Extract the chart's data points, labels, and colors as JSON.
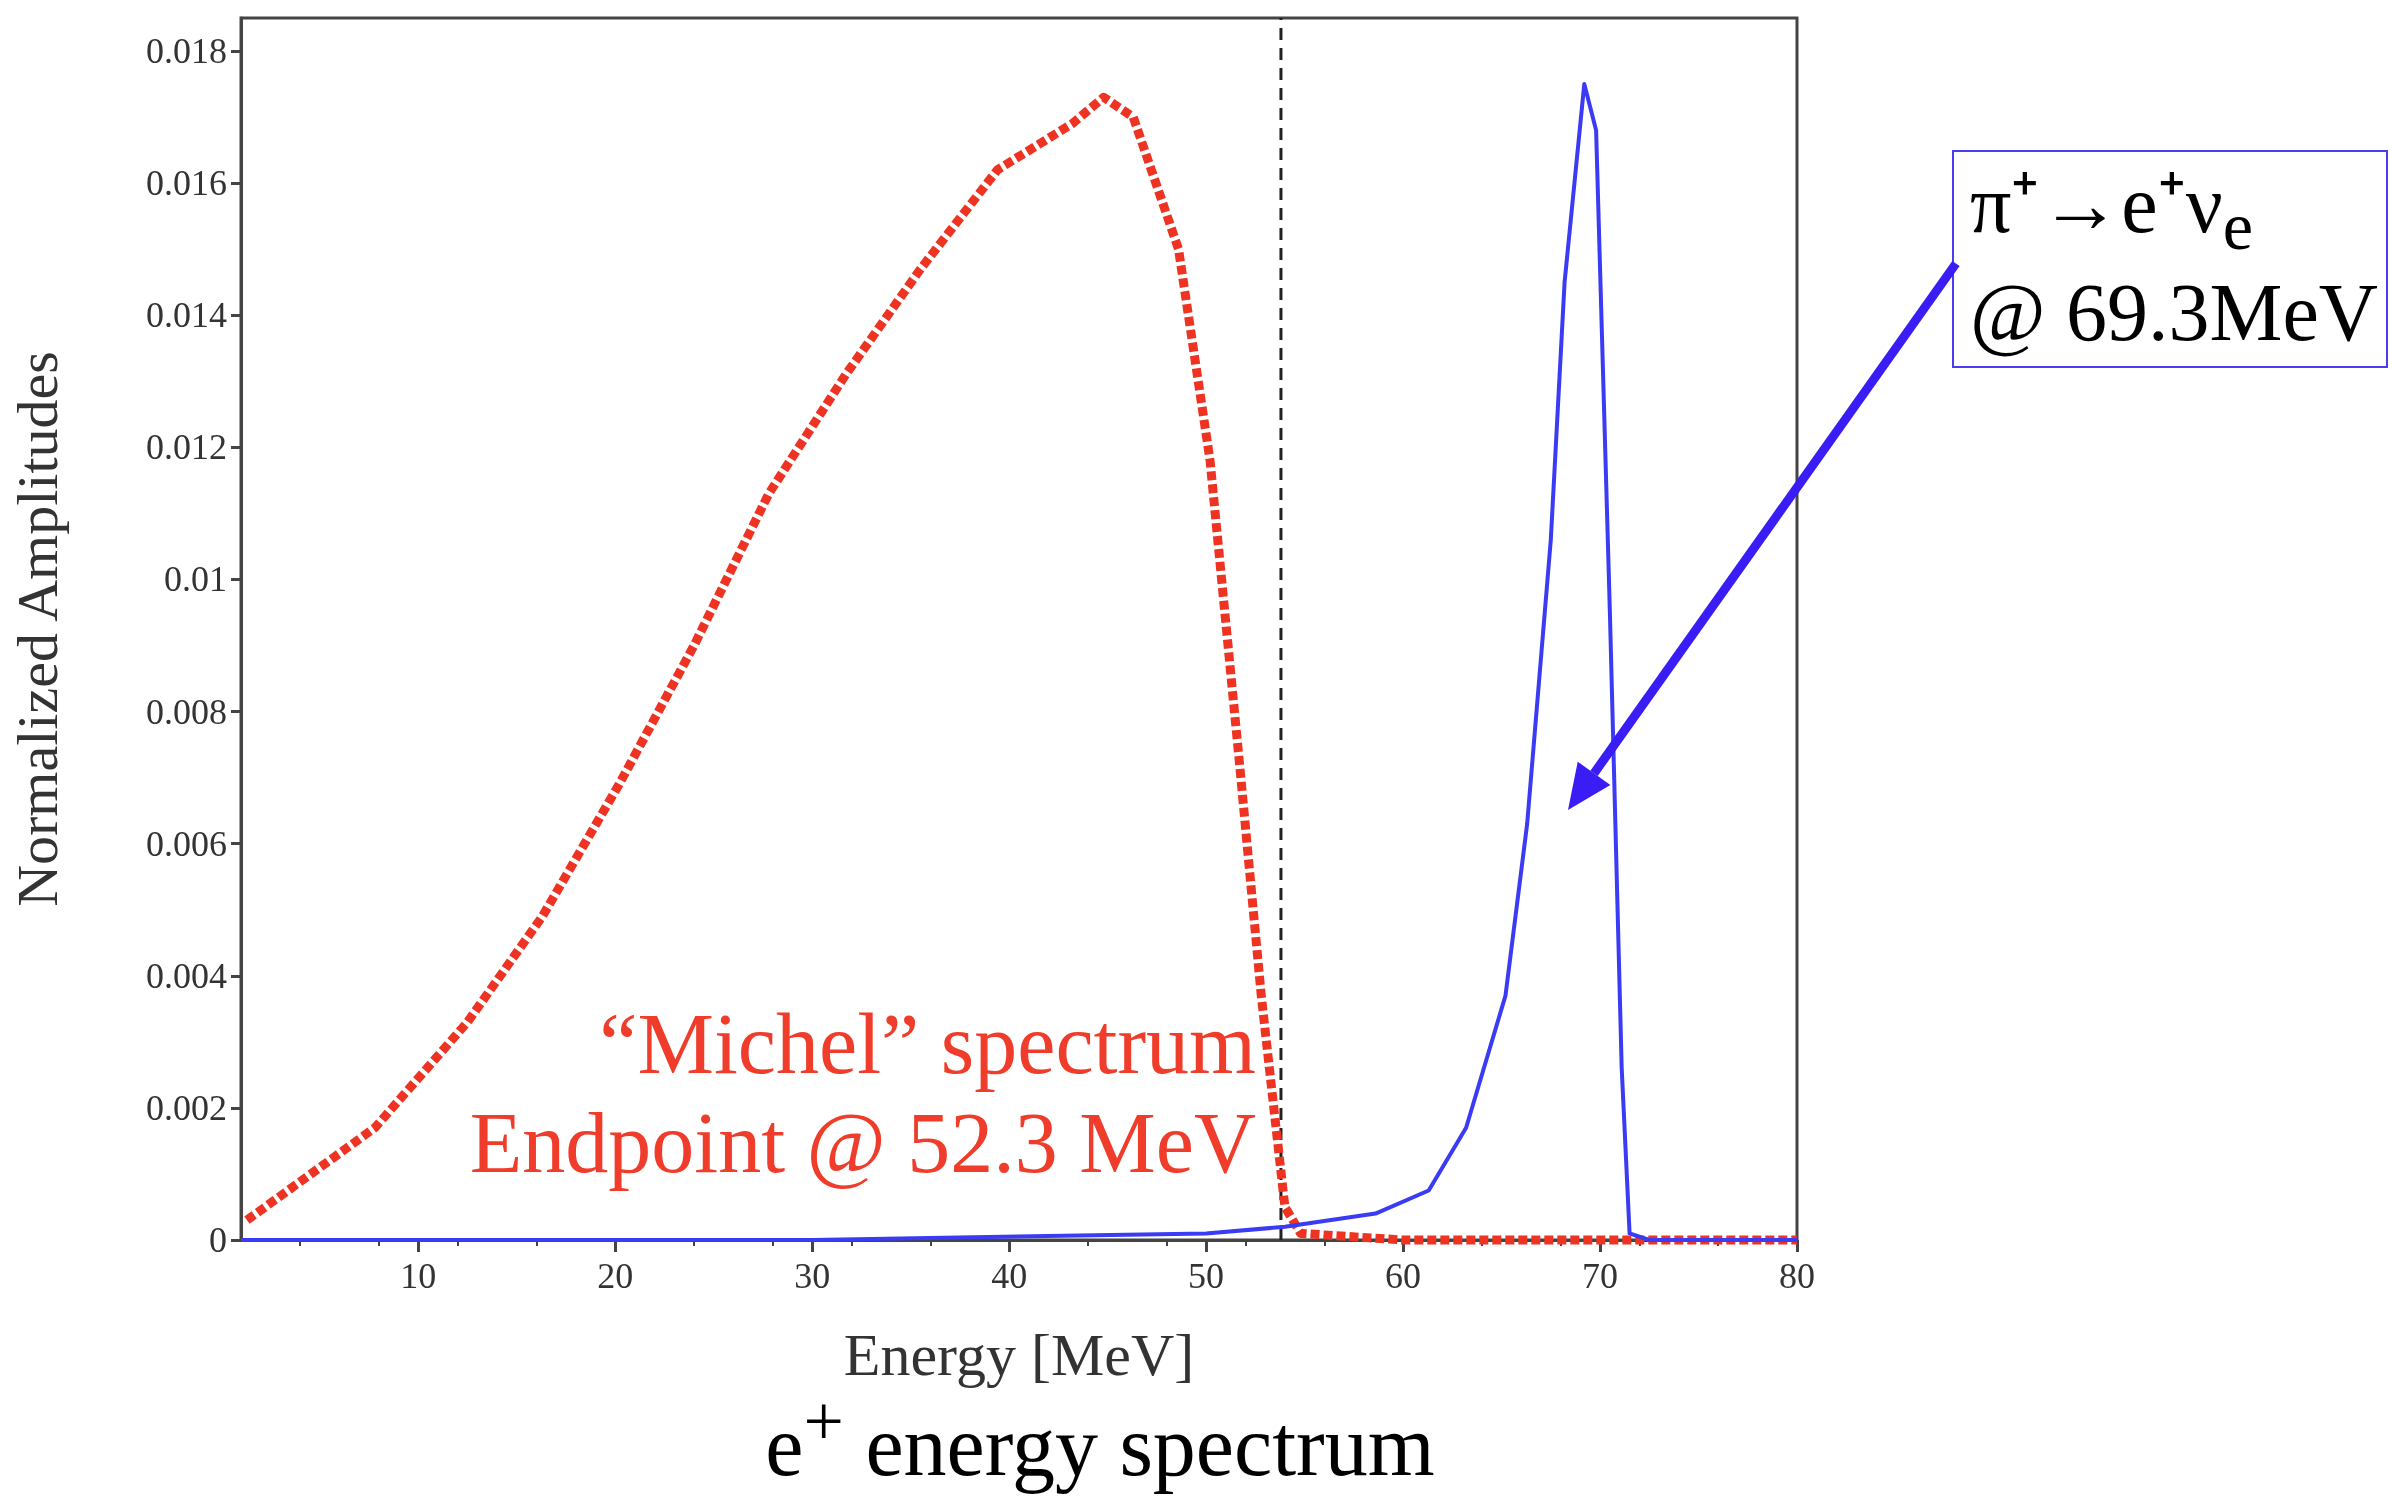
{
  "chart_data": {
    "type": "line",
    "title": "e$^{+}$ energy spectrum",
    "xlabel": "Energy [MeV]",
    "ylabel": "Normalized Amplitudes",
    "xlim": [
      1,
      80
    ],
    "xticks": [
      10,
      20,
      30,
      40,
      50,
      60,
      70,
      80
    ],
    "ylim": [
      0,
      0.0185
    ],
    "yticks": [
      0,
      0.002,
      0.004,
      0.006,
      0.008,
      0.01,
      0.012,
      0.014,
      0.016,
      0.018
    ],
    "grid": false,
    "marker": "none",
    "series": [
      {
        "color": "#ee3322",
        "line_style": "dotted",
        "x": [
          1.3,
          7.8,
          12.5,
          16.3,
          20.2,
          24,
          27.8,
          31.7,
          35.5,
          39.4,
          43.2,
          44.8,
          46.3,
          48.6,
          50.2,
          51.7,
          52.8,
          54,
          54.8,
          60,
          70,
          80
        ],
        "values": [
          0.0003,
          0.0017,
          0.0033,
          0.0049,
          0.0069,
          0.009,
          0.0113,
          0.0131,
          0.0147,
          0.0162,
          0.0169,
          0.0173,
          0.017,
          0.015,
          0.0118,
          0.0072,
          0.0037,
          0.0005,
          0.0001,
          0,
          0,
          0
        ]
      },
      {
        "color": "#3b3bf5",
        "line_style": "solid",
        "x": [
          1,
          30,
          50,
          54,
          58.6,
          61.3,
          63.2,
          65.2,
          66.3,
          67.5,
          68.2,
          69.2,
          69.8,
          70.5,
          71.1,
          71.5,
          72.5,
          80
        ],
        "values": [
          0,
          0,
          0.0001,
          0.0002,
          0.0004,
          0.00075,
          0.0017,
          0.0037,
          0.0063,
          0.0106,
          0.0145,
          0.0175,
          0.0168,
          0.0095,
          0.0026,
          0.0001,
          0,
          0
        ]
      }
    ],
    "ref_lines": [
      {
        "axis": "x",
        "value": 53.8,
        "color": "#222222",
        "line_style": "dashed"
      }
    ],
    "annotations": [
      "“Michel” spectrum\nEndpoint @ 52.3 MeV",
      "π⁺→e⁺ν$_{e}$\n@ 69.3MeV"
    ]
  }
}
